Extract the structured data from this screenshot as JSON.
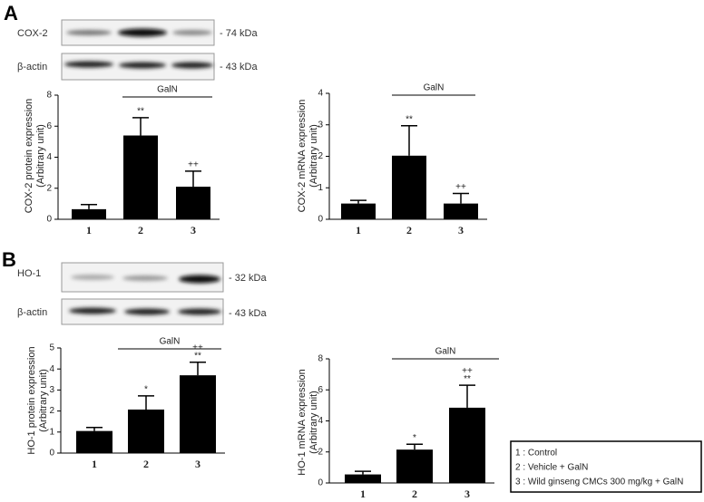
{
  "panel_labels": [
    "A",
    "B"
  ],
  "blots": [
    {
      "rows": [
        {
          "label": "COX-2",
          "size": "- 74 kDa"
        },
        {
          "label": "β-actin",
          "size": "- 43 kDa"
        }
      ]
    },
    {
      "rows": [
        {
          "label": "HO-1",
          "size": "- 32 kDa"
        },
        {
          "label": "β-actin",
          "size": "- 43 kDa"
        }
      ]
    }
  ],
  "legend": [
    "1 : Control",
    "2 : Vehicle  + GalN",
    "3 : Wild ginseng CMCs 300 mg/kg  +  GalN"
  ],
  "chart_data": [
    {
      "type": "bar",
      "ylabel": [
        "COX-2 protein expression",
        "(Arbitrary unit)"
      ],
      "group_label": "GalN",
      "categories": [
        "1",
        "2",
        "3"
      ],
      "values": [
        0.65,
        5.4,
        2.1
      ],
      "errors": [
        0.3,
        1.15,
        1.0
      ],
      "annotations": [
        [],
        [
          "**"
        ],
        [
          "++"
        ]
      ],
      "color": "#000000",
      "ylim": [
        0,
        8
      ],
      "yticks": [
        0,
        2,
        4,
        6,
        8
      ]
    },
    {
      "type": "bar",
      "ylabel": [
        "COX-2 mRNA expression",
        "(Arbitrary unit)"
      ],
      "group_label": "GalN",
      "categories": [
        "1",
        "2",
        "3"
      ],
      "values": [
        0.5,
        2.02,
        0.5
      ],
      "errors": [
        0.1,
        0.95,
        0.32
      ],
      "annotations": [
        [],
        [
          "**"
        ],
        [
          "++"
        ]
      ],
      "color": "#000000",
      "ylim": [
        0,
        4
      ],
      "yticks": [
        0,
        1,
        2,
        3,
        4
      ]
    },
    {
      "type": "bar",
      "ylabel": [
        "HO-1 protein expression",
        "(Arbitrary unit)"
      ],
      "group_label": "GalN",
      "categories": [
        "1",
        "2",
        "3"
      ],
      "values": [
        1.05,
        2.07,
        3.7
      ],
      "errors": [
        0.17,
        0.65,
        0.62
      ],
      "annotations": [
        [],
        [
          "*"
        ],
        [
          "++",
          "**"
        ]
      ],
      "color": "#000000",
      "ylim": [
        0,
        5
      ],
      "yticks": [
        0,
        1,
        2,
        3,
        4,
        5
      ]
    },
    {
      "type": "bar",
      "ylabel": [
        "HO-1 mRNA expression",
        "(Arbitrary unit)"
      ],
      "group_label": "GalN",
      "categories": [
        "1",
        "2",
        "3"
      ],
      "values": [
        0.55,
        2.15,
        4.85
      ],
      "errors": [
        0.2,
        0.35,
        1.45
      ],
      "annotations": [
        [],
        [
          "*"
        ],
        [
          "++",
          "**"
        ]
      ],
      "color": "#000000",
      "ylim": [
        0,
        8
      ],
      "yticks": [
        0,
        2,
        4,
        6,
        8
      ]
    }
  ]
}
